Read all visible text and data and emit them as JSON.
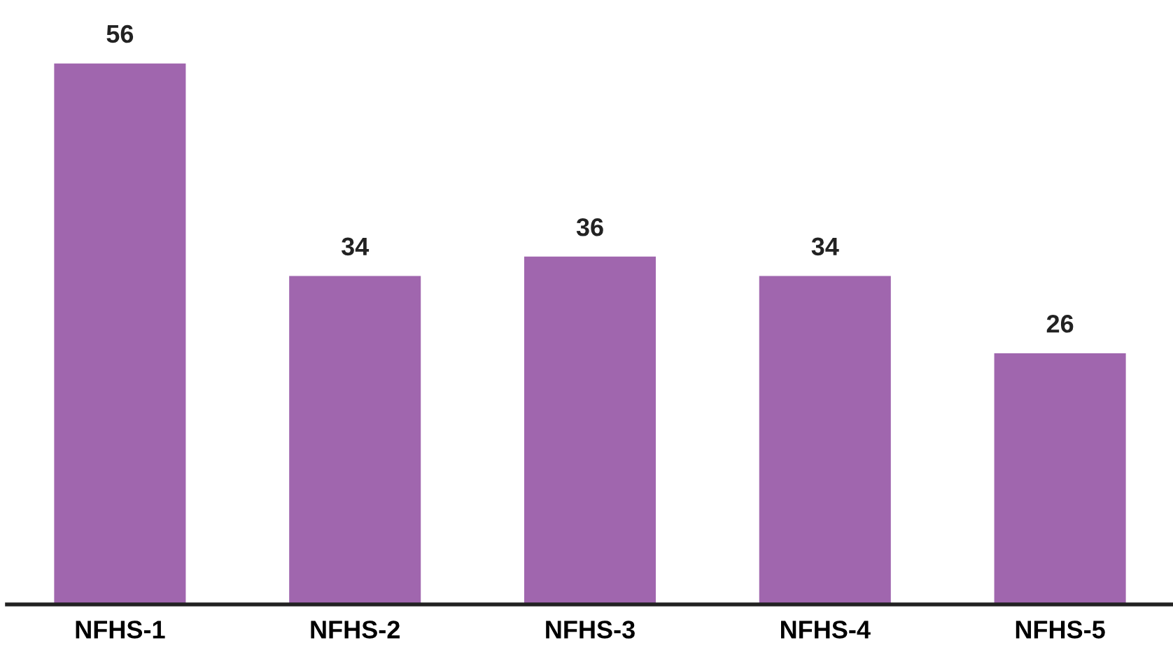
{
  "chart_data": {
    "type": "bar",
    "categories": [
      "NFHS-1",
      "NFHS-2",
      "NFHS-3",
      "NFHS-4",
      "NFHS-5"
    ],
    "values": [
      56,
      34,
      36,
      34,
      26
    ],
    "color": "#a066ae",
    "data_labels": true,
    "grid": false,
    "legend": false
  }
}
